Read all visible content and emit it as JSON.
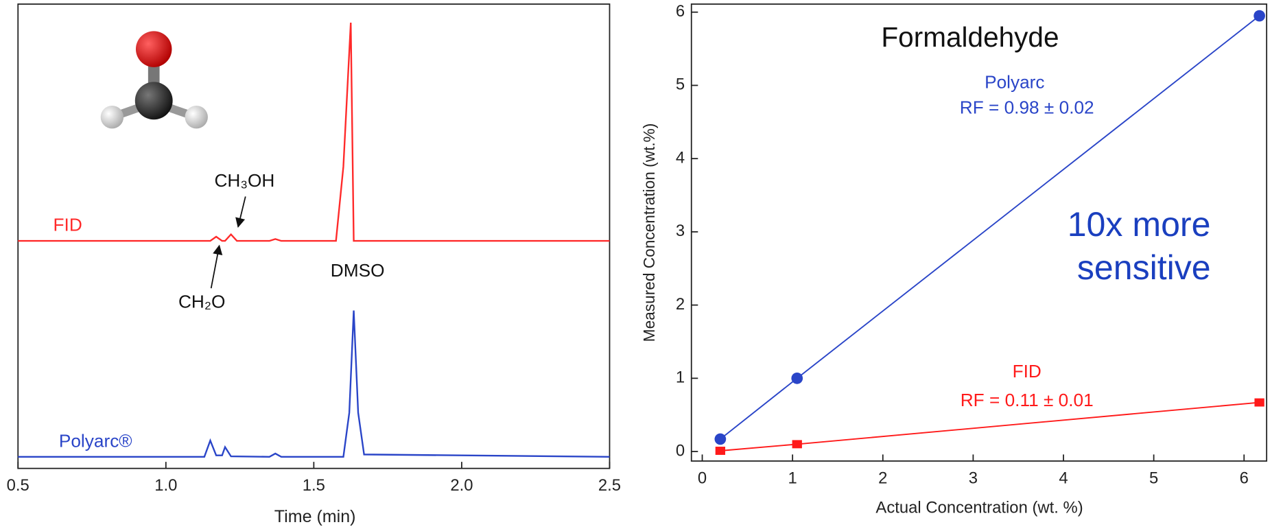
{
  "chart_data": [
    {
      "type": "line",
      "xlabel": "Time (min)",
      "xlim": [
        0.5,
        2.5
      ],
      "xticks": [
        0.5,
        {
          "value": 1,
          "label": "1.0"
        },
        1.5,
        {
          "value": 2,
          "label": "2.0"
        },
        2.5
      ],
      "ylim": [
        0,
        100
      ],
      "series": [
        {
          "name": "FID",
          "color": "#ff2a2a",
          "x": [
            0.5,
            1.15,
            1.17,
            1.19,
            1.2,
            1.22,
            1.24,
            1.35,
            1.37,
            1.39,
            1.575,
            1.6,
            1.625,
            1.635,
            2.5
          ],
          "values": [
            49,
            49,
            49.9,
            49,
            49,
            50.4,
            49,
            49,
            49.4,
            49,
            49,
            65,
            96,
            49,
            49
          ]
        },
        {
          "name": "Polyarc®",
          "color": "#2a45c8",
          "x": [
            0.5,
            1.13,
            1.15,
            1.17,
            1.19,
            1.2,
            1.22,
            1.35,
            1.37,
            1.39,
            1.6,
            1.62,
            1.635,
            1.65,
            1.67,
            2.5
          ],
          "values": [
            2.5,
            2.5,
            6,
            2.8,
            2.8,
            4.6,
            2.6,
            2.5,
            3.2,
            2.5,
            2.5,
            12,
            34,
            12,
            3,
            2.5
          ]
        }
      ],
      "annotations": [
        "CH₃OH",
        "CH₂O",
        "DMSO"
      ]
    },
    {
      "type": "scatter",
      "title": "Formaldehyde",
      "xlabel": "Actual Concentration (wt. %)",
      "ylabel": "Measured Concentration (wt.%)",
      "xlim": [
        -0.12,
        6.25
      ],
      "xticks": [
        0,
        1,
        2,
        3,
        4,
        5,
        6
      ],
      "ylim": [
        -0.13,
        6.11
      ],
      "yticks": [
        0,
        1,
        2,
        3,
        4,
        5,
        6
      ],
      "series": [
        {
          "name": "Polyarc",
          "color": "#2a45c8",
          "marker": "circle",
          "x": [
            0.2,
            1.05,
            6.17
          ],
          "values": [
            0.17,
            1.0,
            5.95
          ],
          "annotation": "RF = 0.98 ± 0.02"
        },
        {
          "name": "FID",
          "color": "#ff1a1a",
          "marker": "square",
          "x": [
            0.2,
            1.05,
            6.17
          ],
          "values": [
            0.01,
            0.1,
            0.67
          ],
          "annotation": "RF = 0.11 ± 0.01"
        }
      ],
      "annotations": [
        "10x more",
        "sensitive"
      ]
    }
  ]
}
